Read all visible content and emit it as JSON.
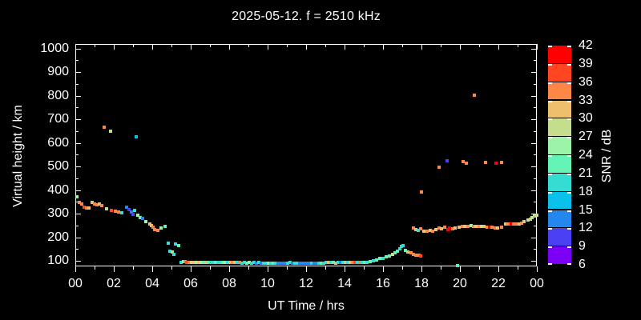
{
  "title": "2025-05-12. f = 2510 kHz",
  "chart_data": {
    "type": "scatter",
    "title": "2025-05-12. f = 2510 kHz",
    "xlabel": "UT Time / hrs",
    "ylabel": "Virtual height / km",
    "xlim": [
      0,
      24
    ],
    "ylim": [
      90,
      1020
    ],
    "grid": false,
    "x_tick_labels": [
      "00",
      "02",
      "04",
      "06",
      "08",
      "10",
      "12",
      "14",
      "16",
      "18",
      "20",
      "22",
      "00"
    ],
    "x_tick_hours": [
      0,
      2,
      4,
      6,
      8,
      10,
      12,
      14,
      16,
      18,
      20,
      22,
      24
    ],
    "y_tick_labels": [
      "100",
      "200",
      "300",
      "400",
      "500",
      "600",
      "700",
      "800",
      "900",
      "1000"
    ],
    "y_tick_values": [
      100,
      200,
      300,
      400,
      500,
      600,
      700,
      800,
      900,
      1000
    ],
    "colorbar": {
      "label": "SNR / dB",
      "tick_labels": [
        "42",
        "39",
        "36",
        "33",
        "30",
        "27",
        "24",
        "21",
        "18",
        "15",
        "12",
        "9",
        "6"
      ],
      "levels": [
        {
          "snr": 39,
          "color": "#ff0000"
        },
        {
          "snr": 36,
          "color": "#ff4522"
        },
        {
          "snr": 33,
          "color": "#fd8747"
        },
        {
          "snr": 30,
          "color": "#eebf6c"
        },
        {
          "snr": 27,
          "color": "#c5de8d"
        },
        {
          "snr": 24,
          "color": "#9cf4a9"
        },
        {
          "snr": 21,
          "color": "#63f4b6"
        },
        {
          "snr": 18,
          "color": "#35dcd2"
        },
        {
          "snr": 15,
          "color": "#0bc1ec"
        },
        {
          "snr": 12,
          "color": "#2487f0"
        },
        {
          "snr": 9,
          "color": "#4b3ff2"
        },
        {
          "snr": 6,
          "color": "#7c00f5"
        }
      ]
    },
    "points_format": [
      "ut_hour",
      "virtual_height_km",
      "snr_db"
    ],
    "points": [
      [
        0.03,
        374,
        24
      ],
      [
        0.17,
        350,
        33
      ],
      [
        0.29,
        344,
        33
      ],
      [
        0.42,
        331,
        36
      ],
      [
        0.54,
        327,
        33
      ],
      [
        0.67,
        327,
        30
      ],
      [
        0.83,
        350,
        30
      ],
      [
        0.96,
        345,
        33
      ],
      [
        1.08,
        341,
        33
      ],
      [
        1.21,
        344,
        30
      ],
      [
        1.33,
        338,
        33
      ],
      [
        1.46,
        670,
        33
      ],
      [
        1.58,
        324,
        27
      ],
      [
        1.79,
        653,
        27
      ],
      [
        1.83,
        317,
        36
      ],
      [
        2.04,
        314,
        33
      ],
      [
        2.21,
        310,
        33
      ],
      [
        2.38,
        307,
        18
      ],
      [
        2.63,
        331,
        12
      ],
      [
        2.75,
        320,
        9
      ],
      [
        2.88,
        310,
        12
      ],
      [
        2.96,
        300,
        9
      ],
      [
        3.04,
        317,
        18
      ],
      [
        3.13,
        629,
        15
      ],
      [
        3.21,
        297,
        24
      ],
      [
        3.33,
        287,
        21
      ],
      [
        3.46,
        283,
        12
      ],
      [
        3.63,
        270,
        24
      ],
      [
        3.83,
        259,
        30
      ],
      [
        3.92,
        253,
        30
      ],
      [
        4.0,
        246,
        33
      ],
      [
        4.08,
        236,
        33
      ],
      [
        4.25,
        232,
        33
      ],
      [
        4.42,
        242,
        24
      ],
      [
        4.63,
        249,
        21
      ],
      [
        4.79,
        178,
        18
      ],
      [
        4.88,
        144,
        18
      ],
      [
        5.0,
        141,
        27
      ],
      [
        5.08,
        131,
        18
      ],
      [
        5.17,
        175,
        18
      ],
      [
        5.33,
        168,
        21
      ],
      [
        5.46,
        97,
        18
      ],
      [
        5.58,
        99,
        24
      ],
      [
        5.67,
        100,
        33
      ],
      [
        5.75,
        98,
        36
      ],
      [
        5.87,
        98,
        33
      ],
      [
        6.0,
        97,
        27
      ],
      [
        6.12,
        98,
        30
      ],
      [
        6.25,
        97,
        24
      ],
      [
        6.37,
        98,
        30
      ],
      [
        6.5,
        97,
        24
      ],
      [
        6.62,
        97,
        21
      ],
      [
        6.75,
        98,
        30
      ],
      [
        6.87,
        97,
        21
      ],
      [
        7.0,
        96,
        18
      ],
      [
        7.12,
        97,
        18
      ],
      [
        7.25,
        96,
        21
      ],
      [
        7.37,
        97,
        18
      ],
      [
        7.5,
        96,
        18
      ],
      [
        7.62,
        96,
        21
      ],
      [
        7.75,
        95,
        24
      ],
      [
        7.87,
        96,
        18
      ],
      [
        8.0,
        95,
        30
      ],
      [
        8.12,
        95,
        33
      ],
      [
        8.25,
        95,
        30
      ],
      [
        8.37,
        95,
        18
      ],
      [
        8.5,
        95,
        33
      ],
      [
        8.62,
        94,
        18
      ],
      [
        8.75,
        95,
        18
      ],
      [
        8.87,
        94,
        21
      ],
      [
        9.0,
        95,
        24
      ],
      [
        9.12,
        94,
        18
      ],
      [
        9.25,
        95,
        18
      ],
      [
        9.37,
        94,
        12
      ],
      [
        9.5,
        95,
        18
      ],
      [
        9.62,
        94,
        12
      ],
      [
        9.75,
        94,
        18
      ],
      [
        9.87,
        94,
        18
      ],
      [
        10.0,
        94,
        24
      ],
      [
        10.12,
        94,
        18
      ],
      [
        10.25,
        94,
        21
      ],
      [
        10.37,
        94,
        18
      ],
      [
        10.5,
        94,
        12
      ],
      [
        10.62,
        94,
        12
      ],
      [
        10.75,
        94,
        12
      ],
      [
        10.87,
        94,
        12
      ],
      [
        11.0,
        94,
        18
      ],
      [
        11.12,
        95,
        18
      ],
      [
        11.25,
        94,
        12
      ],
      [
        11.37,
        94,
        18
      ],
      [
        11.5,
        94,
        18
      ],
      [
        11.62,
        94,
        12
      ],
      [
        11.75,
        94,
        12
      ],
      [
        11.87,
        94,
        12
      ],
      [
        12.0,
        94,
        12
      ],
      [
        12.12,
        94,
        12
      ],
      [
        12.25,
        94,
        18
      ],
      [
        12.37,
        94,
        12
      ],
      [
        12.5,
        94,
        12
      ],
      [
        12.62,
        94,
        18
      ],
      [
        12.75,
        94,
        21
      ],
      [
        12.87,
        94,
        18
      ],
      [
        13.0,
        95,
        18
      ],
      [
        13.12,
        95,
        30
      ],
      [
        13.25,
        95,
        18
      ],
      [
        13.37,
        95,
        21
      ],
      [
        13.5,
        94,
        30
      ],
      [
        13.62,
        95,
        18
      ],
      [
        13.75,
        95,
        12
      ],
      [
        13.87,
        95,
        18
      ],
      [
        14.0,
        95,
        30
      ],
      [
        14.12,
        95,
        18
      ],
      [
        14.25,
        96,
        30
      ],
      [
        14.37,
        95,
        33
      ],
      [
        14.5,
        95,
        36
      ],
      [
        14.62,
        96,
        18
      ],
      [
        14.75,
        96,
        33
      ],
      [
        14.87,
        96,
        18
      ],
      [
        15.0,
        97,
        21
      ],
      [
        15.12,
        98,
        18
      ],
      [
        15.29,
        100,
        21
      ],
      [
        15.46,
        103,
        18
      ],
      [
        15.62,
        108,
        21
      ],
      [
        15.79,
        112,
        21
      ],
      [
        15.96,
        115,
        18
      ],
      [
        16.12,
        120,
        21
      ],
      [
        16.29,
        124,
        21
      ],
      [
        16.46,
        130,
        27
      ],
      [
        16.58,
        136,
        21
      ],
      [
        16.71,
        145,
        21
      ],
      [
        16.83,
        154,
        18
      ],
      [
        16.92,
        164,
        18
      ],
      [
        17.0,
        167,
        18
      ],
      [
        17.12,
        148,
        21
      ],
      [
        17.25,
        142,
        30
      ],
      [
        17.42,
        136,
        33
      ],
      [
        17.54,
        130,
        33
      ],
      [
        17.67,
        127,
        33
      ],
      [
        17.83,
        127,
        33
      ],
      [
        17.92,
        124,
        36
      ],
      [
        17.54,
        243,
        33
      ],
      [
        17.67,
        236,
        30
      ],
      [
        17.79,
        232,
        18
      ],
      [
        17.92,
        239,
        33
      ],
      [
        18.08,
        229,
        30
      ],
      [
        18.25,
        229,
        33
      ],
      [
        18.42,
        232,
        30
      ],
      [
        18.54,
        229,
        33
      ],
      [
        18.71,
        236,
        30
      ],
      [
        18.88,
        243,
        33
      ],
      [
        19.0,
        239,
        30
      ],
      [
        19.17,
        246,
        33
      ],
      [
        19.33,
        236,
        39
      ],
      [
        19.42,
        243,
        39
      ],
      [
        19.58,
        239,
        33
      ],
      [
        19.71,
        243,
        30
      ],
      [
        19.92,
        246,
        30
      ],
      [
        20.08,
        250,
        33
      ],
      [
        20.21,
        250,
        30
      ],
      [
        20.37,
        250,
        33
      ],
      [
        20.54,
        253,
        24
      ],
      [
        20.67,
        250,
        33
      ],
      [
        20.79,
        250,
        30
      ],
      [
        20.96,
        250,
        33
      ],
      [
        21.08,
        250,
        24
      ],
      [
        21.21,
        250,
        30
      ],
      [
        21.37,
        246,
        33
      ],
      [
        21.5,
        246,
        39
      ],
      [
        21.62,
        246,
        33
      ],
      [
        21.79,
        243,
        33
      ],
      [
        21.92,
        243,
        30
      ],
      [
        22.12,
        246,
        33
      ],
      [
        22.33,
        260,
        30
      ],
      [
        22.46,
        260,
        33
      ],
      [
        22.62,
        260,
        39
      ],
      [
        22.75,
        260,
        33
      ],
      [
        22.87,
        260,
        33
      ],
      [
        23.04,
        260,
        30
      ],
      [
        23.17,
        263,
        33
      ],
      [
        23.29,
        270,
        30
      ],
      [
        23.5,
        275,
        24
      ],
      [
        23.62,
        278,
        30
      ],
      [
        23.71,
        288,
        24
      ],
      [
        23.83,
        292,
        30
      ],
      [
        23.96,
        298,
        27
      ],
      [
        17.96,
        395,
        33
      ],
      [
        18.88,
        500,
        33
      ],
      [
        19.29,
        527,
        9
      ],
      [
        20.12,
        524,
        33
      ],
      [
        20.29,
        517,
        33
      ],
      [
        20.71,
        805,
        33
      ],
      [
        21.29,
        520,
        33
      ],
      [
        21.83,
        517,
        39
      ],
      [
        22.12,
        520,
        33
      ],
      [
        19.83,
        83,
        21
      ]
    ]
  }
}
